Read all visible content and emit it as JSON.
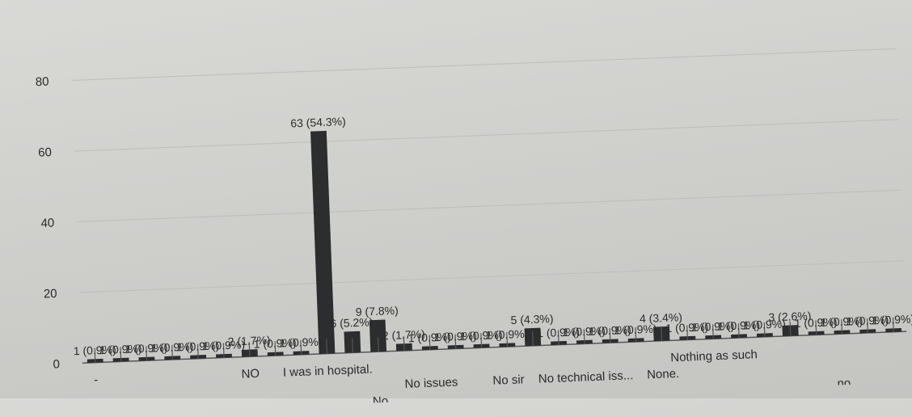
{
  "chart_data": {
    "type": "bar",
    "ylim": [
      0,
      80
    ],
    "yticks": [
      0,
      20,
      40,
      60,
      80
    ],
    "grid": true,
    "categories": [
      "-",
      "",
      "",
      "",
      "",
      "",
      "NO",
      "",
      "",
      "I was in hospital.",
      "",
      "No",
      "",
      "No issues",
      "",
      "",
      "No sir",
      "",
      "",
      "No technical iss...",
      "",
      "",
      "None.",
      "",
      "Nothing as such",
      "",
      "",
      "",
      "",
      "no",
      "",
      ""
    ],
    "values": [
      1,
      1,
      1,
      1,
      1,
      1,
      2,
      1,
      1,
      63,
      6,
      9,
      2,
      1,
      1,
      1,
      1,
      5,
      1,
      1,
      1,
      1,
      4,
      1,
      1,
      1,
      1,
      3,
      1,
      1,
      1,
      1
    ],
    "value_labels": [
      "1 (0.9%)",
      "1 (0.9%)",
      "1 (0.9%)",
      "1 (0.9%)",
      "1 (0.9%)",
      "1 (0.9%)",
      "2 (1.7%)",
      "1 (0.9%)",
      "1 (0.9%)",
      "63 (54.3%)",
      "6 (5.2%)",
      "9 (7.8%)",
      "2 (1.7%)",
      "1 (0.9%)",
      "1 (0.9%)",
      "1 (0.9%)",
      "1 (0.9%)",
      "5 (4.3%)",
      "1 (0.9%)",
      "1 (0.9%)",
      "1 (0.9%)",
      "1 (0.9%)",
      "4 (3.4%)",
      "1 (0.9%)",
      "1 (0.9%)",
      "1 (0.9%)",
      "1 (0.9%)",
      "3 (2.6%)",
      "1 (0.9%)",
      "1 (0.9%)",
      "1 (0.9%)",
      "1 (0.9%)"
    ]
  }
}
